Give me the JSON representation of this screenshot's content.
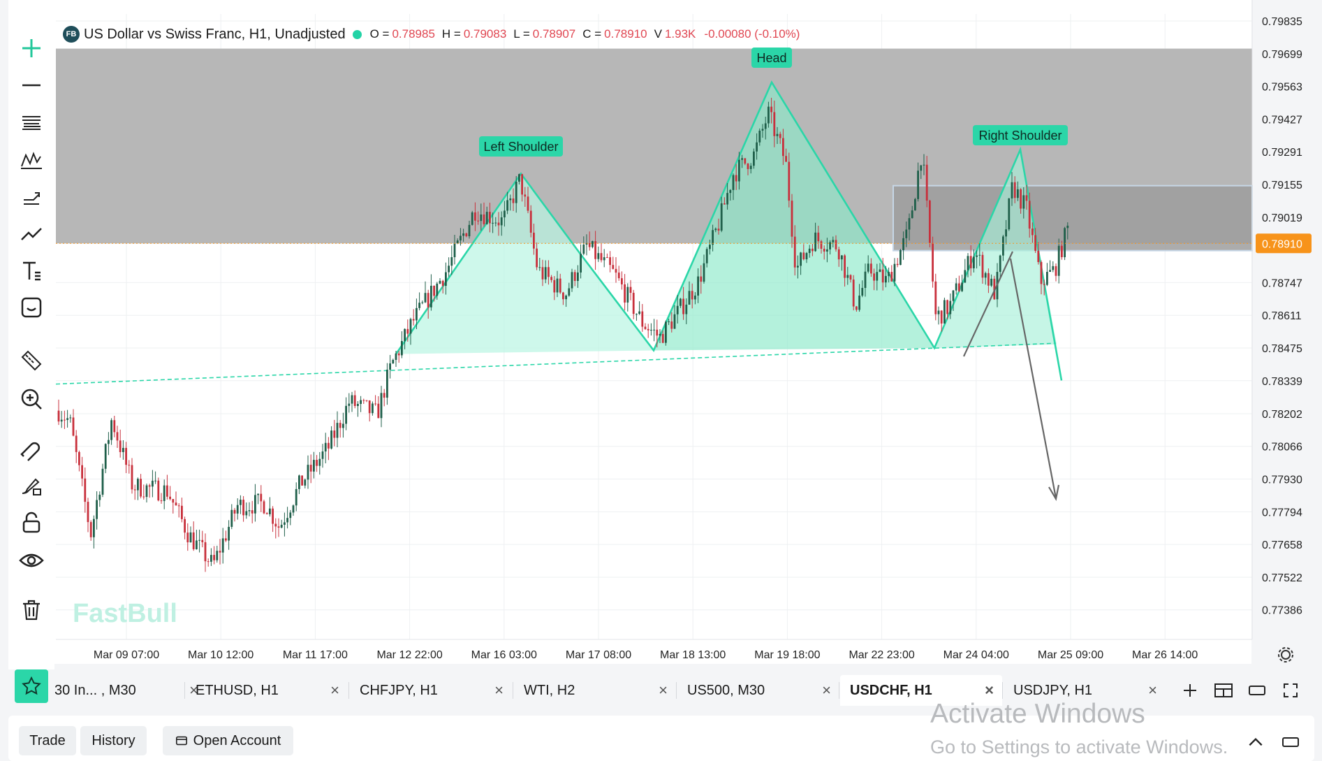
{
  "window": {
    "title": "US Dollar vs Swiss Franc, H1, Unadjusted"
  },
  "legend": {
    "badge": "FB",
    "title": "US Dollar vs Swiss Franc, H1, Unadjusted",
    "open_label": "O =",
    "open": "0.78985",
    "high_label": "H =",
    "high": "0.79083",
    "low_label": "L =",
    "low": "0.78907",
    "close_label": "C =",
    "close": "0.78910",
    "volume_label": "V",
    "volume": "1.93K",
    "change": "-0.00080 (-0.10%)",
    "colors": {
      "value": "#e04752",
      "status_dot": "#22d3a6"
    }
  },
  "toolbar": {
    "icons": [
      "crosshair-icon",
      "line-icon",
      "fib-icon",
      "pattern-icon",
      "projection-icon",
      "trend-icon",
      "text-icon",
      "emoji-icon",
      "ruler-icon",
      "zoom-icon",
      "magnet-icon",
      "brush-lock-icon",
      "lock-icon",
      "eye-icon",
      "trash-icon"
    ]
  },
  "price_axis": {
    "ticks": [
      "0.79835",
      "0.79699",
      "0.79563",
      "0.79427",
      "0.79291",
      "0.79155",
      "0.79019",
      "0.78747",
      "0.78611",
      "0.78475",
      "0.78339",
      "0.78202",
      "0.78066",
      "0.77930",
      "0.77794",
      "0.77658",
      "0.77522",
      "0.77386"
    ],
    "current": "0.78910",
    "current_color": "#f7931a"
  },
  "time_axis": {
    "ticks": [
      "Mar 09 07:00",
      "Mar 10 12:00",
      "Mar 11 17:00",
      "Mar 12 22:00",
      "Mar 16 03:00",
      "Mar 17 08:00",
      "Mar 18 13:00",
      "Mar 19 18:00",
      "Mar 22 23:00",
      "Mar 24 04:00",
      "Mar 25 09:00",
      "Mar 26 14:00"
    ]
  },
  "annotations": {
    "left_shoulder": "Left Shoulder",
    "head": "Head",
    "right_shoulder": "Right Shoulder",
    "color": "#2bd6a8"
  },
  "brand": "FastBull",
  "chart_data": {
    "type": "candlestick",
    "symbol": "USDCHF",
    "timeframe": "H1",
    "ylim": [
      0.7725,
      0.799
    ],
    "candle_colors": {
      "up": "#1f5f4a",
      "down": "#c8303c"
    },
    "pattern_price_points": {
      "left_shoulder_peak": 0.792,
      "head_peak": 0.7958,
      "right_shoulder_peak": 0.793,
      "neckline_left": 0.7845,
      "neckline_right": 0.7849,
      "target": 0.7778
    },
    "zones": [
      {
        "name": "upper-resistance",
        "from": 0.7891,
        "to": 0.7972,
        "color": "#b3b3b3"
      },
      {
        "name": "right-resistance",
        "from": 0.7888,
        "to": 0.7915,
        "color": "#9e9e9e"
      }
    ],
    "last_price": 0.7891
  },
  "tabs": [
    {
      "label": "30 In... , M30",
      "active": false
    },
    {
      "label": "ETHUSD, H1",
      "active": false
    },
    {
      "label": "CHFJPY, H1",
      "active": false
    },
    {
      "label": "WTI, H2",
      "active": false
    },
    {
      "label": "US500, M30",
      "active": false
    },
    {
      "label": "USDCHF, H1",
      "active": true
    },
    {
      "label": "USDJPY, H1",
      "active": false
    }
  ],
  "tab_close": "×",
  "bottom": {
    "trade": "Trade",
    "history": "History",
    "open_account": "Open Account"
  },
  "watermark": {
    "line1": "Activate Windows",
    "line2": "Go to Settings to activate Windows."
  }
}
